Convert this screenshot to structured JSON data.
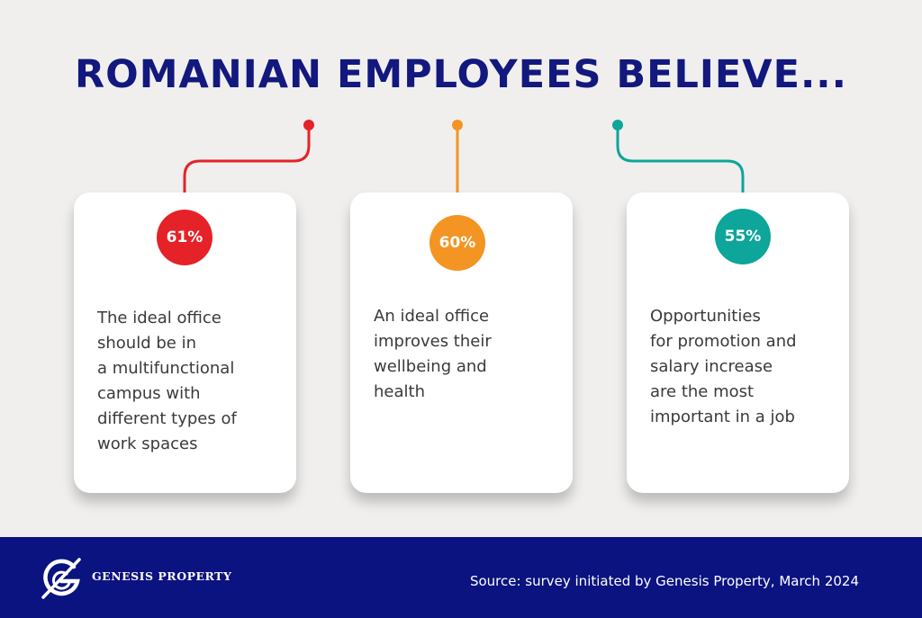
{
  "title": "ROMANIAN EMPLOYEES BELIEVE...",
  "colors": {
    "background": "#f0efee",
    "title": "#12187d",
    "footer": "#0b1380",
    "red": "#e52228",
    "orange": "#f39423",
    "teal": "#0ea59a"
  },
  "cards": [
    {
      "percent": "61%",
      "percent_value": 61,
      "text": "The ideal office\nshould be in\na multifunctional\ncampus with\ndifferent types of\nwork spaces",
      "color": "#e52228"
    },
    {
      "percent": "60%",
      "percent_value": 60,
      "text": "An ideal office\nimproves their\nwellbeing and\nhealth",
      "color": "#f39423"
    },
    {
      "percent": "55%",
      "percent_value": 55,
      "text": "Opportunities\nfor promotion and\nsalary increase\nare the most\nimportant in a job",
      "color": "#0ea59a"
    }
  ],
  "footer": {
    "brand": "GENESIS PROPERTY",
    "logo_icon": "genesis-logo-icon",
    "source": "Source: survey initiated by Genesis Property, March 2024"
  }
}
